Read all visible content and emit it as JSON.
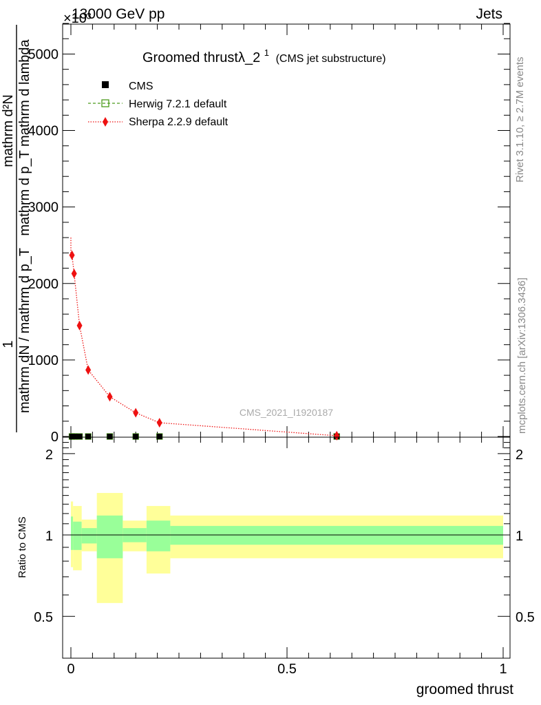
{
  "header": {
    "energy_label": "13000 GeV pp",
    "process_label": "Jets",
    "exponent_label": "×10³"
  },
  "side_labels": {
    "rivet": "Rivet 3.1.10, ≥ 2.7M events",
    "mcplots": "mcplots.cern.ch [arXiv:1306.3436]"
  },
  "watermark": "CMS_2021_I1920187",
  "colors": {
    "cms": "#000000",
    "herwig": "#4a9a1a",
    "sherpa": "#ee1111",
    "band_inner": "#99ff99",
    "band_outer": "#ffff99"
  },
  "legend": {
    "cms": "CMS",
    "herwig": "Herwig 7.2.1 default",
    "sherpa": "Sherpa 2.2.9 default"
  },
  "chart_data": [
    {
      "type": "line",
      "title": "Groomed thrustλ_2",
      "title_sup": "1",
      "title_suffix": "(CMS jet substructure)",
      "xlabel": "",
      "ylabel_frac_top": "mathrm d²N",
      "ylabel_frac_bottom": "mathrm d p_T mathrm d lambda",
      "ylabel_prefix_top": "1",
      "ylabel_prefix_bottom": "mathrm dN / mathrm d p_T",
      "xlim": [
        0,
        1
      ],
      "ylim": [
        0,
        5400
      ],
      "yticks": [
        0,
        1000,
        2000,
        3000,
        4000,
        5000
      ],
      "ytick_labels": [
        "0",
        "1000",
        "2000",
        "3000",
        "4000",
        "5000"
      ],
      "legend_position": "top-left",
      "series": [
        {
          "name": "CMS",
          "x": [
            0.0025,
            0.0075,
            0.02,
            0.04,
            0.09,
            0.15,
            0.205,
            0.615
          ],
          "y": [
            0,
            0,
            0,
            0,
            0,
            0,
            0,
            0
          ]
        },
        {
          "name": "Herwig 7.2.1 default",
          "x": [
            0.0025,
            0.0075,
            0.02,
            0.04,
            0.09,
            0.15,
            0.205,
            0.615
          ],
          "y": [
            0,
            0,
            0,
            0,
            0,
            0,
            0,
            0
          ]
        },
        {
          "name": "Sherpa 2.2.9 default",
          "x": [
            0.0025,
            0.0075,
            0.02,
            0.04,
            0.09,
            0.15,
            0.205,
            0.615
          ],
          "y": [
            2370,
            2130,
            1450,
            870,
            520,
            310,
            180,
            10
          ]
        }
      ]
    },
    {
      "type": "area",
      "xlabel": "groomed thrust",
      "ylabel": "Ratio to CMS",
      "xlim": [
        0,
        1
      ],
      "ylim": [
        0.35,
        2.3
      ],
      "yticks": [
        0.5,
        1,
        2
      ],
      "ytick_labels": [
        "0.5",
        "1",
        "2"
      ],
      "xticks": [
        0,
        0.5,
        1
      ],
      "xtick_labels": [
        "0",
        "0.5",
        "1"
      ],
      "bins": [
        {
          "lo": 0.0,
          "hi": 0.005,
          "inner": [
            0.88,
            1.17
          ],
          "outer": [
            0.76,
            1.33
          ]
        },
        {
          "lo": 0.005,
          "hi": 0.025,
          "inner": [
            0.88,
            1.12
          ],
          "outer": [
            0.74,
            1.28
          ]
        },
        {
          "lo": 0.025,
          "hi": 0.06,
          "inner": [
            0.93,
            1.06
          ],
          "outer": [
            0.87,
            1.14
          ]
        },
        {
          "lo": 0.06,
          "hi": 0.12,
          "inner": [
            0.82,
            1.18
          ],
          "outer": [
            0.56,
            1.43
          ]
        },
        {
          "lo": 0.12,
          "hi": 0.175,
          "inner": [
            0.94,
            1.06
          ],
          "outer": [
            0.87,
            1.13
          ]
        },
        {
          "lo": 0.175,
          "hi": 0.23,
          "inner": [
            0.87,
            1.13
          ],
          "outer": [
            0.72,
            1.28
          ]
        },
        {
          "lo": 0.23,
          "hi": 1.0,
          "inner": [
            0.92,
            1.08
          ],
          "outer": [
            0.82,
            1.18
          ]
        }
      ]
    }
  ]
}
